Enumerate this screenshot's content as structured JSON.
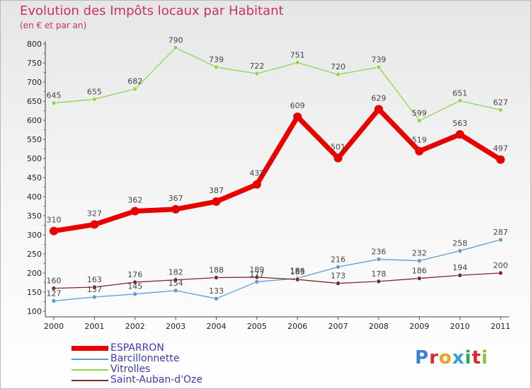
{
  "title": "Evolution des Impôts locaux par Habitant",
  "subtitle": "(en € et par an)",
  "logo": "Proxiti",
  "colors": {
    "esparron": "#e80000",
    "barcillonnette": "#5b9bd5",
    "vitrolles": "#8ed64a",
    "saint_auban": "#7b2a2a",
    "title": "#cc2f6a"
  },
  "chart_data": {
    "type": "line",
    "title": "Evolution des Impôts locaux par Habitant",
    "subtitle": "(en € et par an)",
    "x": [
      "2000",
      "2001",
      "2002",
      "2003",
      "2004",
      "2005",
      "2006",
      "2007",
      "2008",
      "2009",
      "2010",
      "2011"
    ],
    "ylim": [
      100,
      800
    ],
    "yticks": [
      100,
      150,
      200,
      250,
      300,
      350,
      400,
      450,
      500,
      550,
      600,
      650,
      700,
      750,
      800
    ],
    "grid": false,
    "legend_position": "bottom-left",
    "series": [
      {
        "name": "ESPARRON",
        "color": "#e80000",
        "width": 7,
        "values": [
          310,
          327,
          362,
          367,
          387,
          432,
          609,
          501,
          629,
          519,
          563,
          497
        ]
      },
      {
        "name": "Barcillonnette",
        "color": "#5b9bd5",
        "width": 1.3,
        "values": [
          127,
          137,
          145,
          154,
          133,
          177,
          186,
          216,
          236,
          232,
          258,
          287
        ]
      },
      {
        "name": "Vitrolles",
        "color": "#8ed64a",
        "width": 1.3,
        "values": [
          645,
          655,
          682,
          790,
          739,
          722,
          751,
          720,
          739,
          599,
          651,
          627
        ]
      },
      {
        "name": "Saint-Auban-d'Oze",
        "color": "#7b2a2a",
        "width": 1.3,
        "values": [
          160,
          163,
          176,
          182,
          188,
          189,
          183,
          173,
          178,
          186,
          194,
          200
        ]
      }
    ]
  },
  "legend": [
    {
      "label": "ESPARRON"
    },
    {
      "label": "Barcillonnette"
    },
    {
      "label": "Vitrolles"
    },
    {
      "label": "Saint-Auban-d'Oze"
    }
  ]
}
